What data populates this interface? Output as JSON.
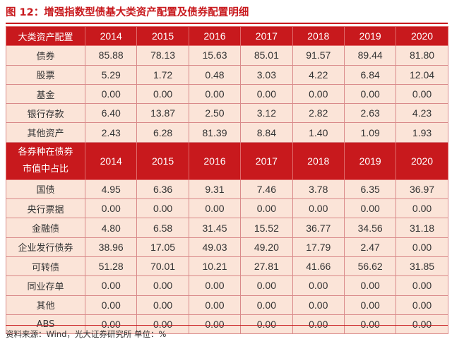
{
  "title": "图 12：增强指数型债基大类资产配置及债券配置明细",
  "table1": {
    "header": "大类资产配置",
    "years": [
      "2014",
      "2015",
      "2016",
      "2017",
      "2018",
      "2019",
      "2020"
    ],
    "rows": [
      {
        "label": "债券",
        "values": [
          "85.88",
          "78.13",
          "15.63",
          "85.01",
          "91.57",
          "89.44",
          "81.80"
        ]
      },
      {
        "label": "股票",
        "values": [
          "5.29",
          "1.72",
          "0.48",
          "3.03",
          "4.22",
          "6.84",
          "12.04"
        ]
      },
      {
        "label": "基金",
        "values": [
          "0.00",
          "0.00",
          "0.00",
          "0.00",
          "0.00",
          "0.00",
          "0.00"
        ]
      },
      {
        "label": "银行存款",
        "values": [
          "6.40",
          "13.87",
          "2.50",
          "3.12",
          "2.82",
          "2.63",
          "4.23"
        ]
      },
      {
        "label": "其他资产",
        "values": [
          "2.43",
          "6.28",
          "81.39",
          "8.84",
          "1.40",
          "1.09",
          "1.93"
        ]
      }
    ]
  },
  "table2": {
    "header_line1": "各券种在债券",
    "header_line2": "市值中占比",
    "years": [
      "2014",
      "2015",
      "2016",
      "2017",
      "2018",
      "2019",
      "2020"
    ],
    "rows": [
      {
        "label": "国债",
        "values": [
          "4.95",
          "6.36",
          "9.31",
          "7.46",
          "3.78",
          "6.35",
          "36.97"
        ]
      },
      {
        "label": "央行票据",
        "values": [
          "0.00",
          "0.00",
          "0.00",
          "0.00",
          "0.00",
          "0.00",
          "0.00"
        ]
      },
      {
        "label": "金融债",
        "values": [
          "4.80",
          "6.58",
          "31.45",
          "15.52",
          "36.77",
          "34.56",
          "31.18"
        ]
      },
      {
        "label": "企业发行债券",
        "values": [
          "38.96",
          "17.05",
          "49.03",
          "49.20",
          "17.79",
          "2.47",
          "0.00"
        ]
      },
      {
        "label": "可转债",
        "values": [
          "51.28",
          "70.01",
          "10.21",
          "27.81",
          "41.66",
          "56.62",
          "31.85"
        ]
      },
      {
        "label": "同业存单",
        "values": [
          "0.00",
          "0.00",
          "0.00",
          "0.00",
          "0.00",
          "0.00",
          "0.00"
        ]
      },
      {
        "label": "其他",
        "values": [
          "0.00",
          "0.00",
          "0.00",
          "0.00",
          "0.00",
          "0.00",
          "0.00"
        ]
      },
      {
        "label": "ABS",
        "values": [
          "0.00",
          "0.00",
          "0.00",
          "0.00",
          "0.00",
          "0.00",
          "0.00"
        ]
      }
    ]
  },
  "source": "资料来源：Wind，光大证券研究所  单位：%"
}
